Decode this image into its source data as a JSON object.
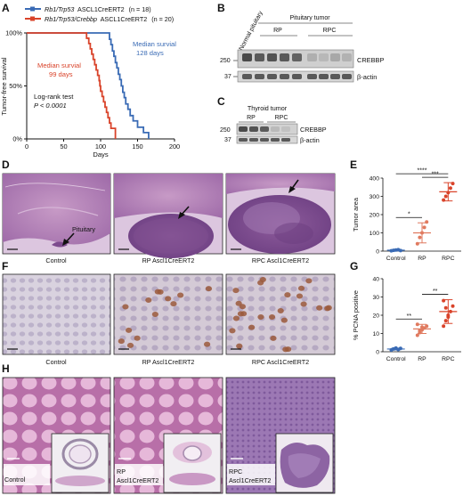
{
  "panels": {
    "A": "A",
    "B": "B",
    "C": "C",
    "D": "D",
    "E": "E",
    "F": "F",
    "G": "G",
    "H": "H"
  },
  "panel_a": {
    "legend": [
      {
        "genotype": "Rb1/Trp53",
        "driver": "ASCL1CreERT2",
        "n_label": "(n = 18)",
        "color": "#3a6bb5"
      },
      {
        "genotype": "Rb1/Trp53/Crebbp",
        "driver": "ASCL1CreERT2",
        "n_label": "(n = 20)",
        "color": "#d9432a"
      }
    ],
    "annot_blue_1": "Median survial",
    "annot_blue_2": "128 days",
    "annot_red_1": "Median survial",
    "annot_red_2": "99 days",
    "logrank_1": "Log-rank test",
    "logrank_2": "P < 0.0001"
  },
  "chart_data": [
    {
      "type": "line",
      "panel": "A",
      "xlabel": "Days",
      "ylabel": "Tumor-free survival",
      "xlim": [
        0,
        200
      ],
      "ylim": [
        0,
        100
      ],
      "xticks": [
        0,
        50,
        100,
        150,
        200
      ],
      "yticks": [
        0,
        50,
        100
      ],
      "yticklabels": [
        "0%",
        "50%",
        "100%"
      ],
      "series": [
        {
          "name": "Rb1/Trp53 ASCL1CreERT2 (n = 18)",
          "color": "#3a6bb5",
          "x": [
            0,
            110,
            112,
            114,
            116,
            118,
            120,
            122,
            124,
            126,
            128,
            130,
            132,
            134,
            137,
            140,
            144,
            150,
            158,
            165
          ],
          "y": [
            100,
            100,
            94,
            89,
            83,
            78,
            72,
            67,
            61,
            56,
            50,
            44,
            39,
            33,
            28,
            22,
            17,
            11,
            6,
            0
          ]
        },
        {
          "name": "Rb1/Trp53/Crebbp ASCL1CreERT2 (n = 20)",
          "color": "#d9432a",
          "x": [
            0,
            78,
            81,
            84,
            86,
            88,
            90,
            92,
            94,
            96,
            98,
            99,
            100,
            102,
            104,
            106,
            108,
            110,
            112,
            114,
            120
          ],
          "y": [
            100,
            100,
            95,
            90,
            85,
            80,
            75,
            70,
            65,
            60,
            55,
            50,
            45,
            40,
            35,
            30,
            25,
            20,
            15,
            10,
            0
          ]
        }
      ]
    },
    {
      "type": "scatter",
      "panel": "E",
      "ylabel": "Tumor area",
      "categories": [
        "Control",
        "RP",
        "RPC"
      ],
      "yticks": [
        0,
        100,
        200,
        300,
        400
      ],
      "ylim": [
        0,
        400
      ],
      "colors": [
        "#3a6bb5",
        "#e07a5f",
        "#d9432a"
      ],
      "means": [
        5,
        100,
        325
      ],
      "sd": [
        3,
        55,
        50
      ],
      "points": [
        [
          2,
          4,
          6,
          8,
          3
        ],
        [
          40,
          75,
          100,
          130,
          160
        ],
        [
          280,
          300,
          320,
          345,
          370
        ]
      ],
      "significance": [
        {
          "from": 0,
          "to": 1,
          "label": "*"
        },
        {
          "from": 1,
          "to": 2,
          "label": "***"
        },
        {
          "from": 0,
          "to": 2,
          "label": "****"
        }
      ]
    },
    {
      "type": "scatter",
      "panel": "G",
      "ylabel": "% PCNA positive",
      "categories": [
        "Control",
        "RP",
        "RPC"
      ],
      "yticks": [
        0,
        10,
        20,
        30,
        40
      ],
      "ylim": [
        0,
        40
      ],
      "colors": [
        "#3a6bb5",
        "#e07a5f",
        "#d9432a"
      ],
      "means": [
        1.5,
        12.5,
        22
      ],
      "sd": [
        0.5,
        2.5,
        6.5
      ],
      "points": [
        [
          1,
          1.5,
          2,
          1.2,
          1.8
        ],
        [
          9,
          10.5,
          12,
          13,
          14,
          15,
          11.5,
          13.5
        ],
        [
          14,
          17,
          20,
          22,
          25,
          28,
          24,
          19
        ]
      ],
      "significance": [
        {
          "from": 0,
          "to": 1,
          "label": "**"
        },
        {
          "from": 1,
          "to": 2,
          "label": "**"
        }
      ]
    }
  ],
  "panel_b": {
    "lanes": [
      "Normal pituitary",
      "Pituitary tumor",
      "RP",
      "RPC"
    ],
    "markers": [
      "250",
      "37"
    ],
    "labels": [
      "CREBBP",
      "β-actin"
    ]
  },
  "panel_c": {
    "title": "Thyroid tumor",
    "groups": [
      "RP",
      "RPC"
    ],
    "markers": [
      "250",
      "37"
    ],
    "labels": [
      "CREBBP",
      "β-actin"
    ]
  },
  "panel_d": {
    "captions": [
      "Control",
      "RP Ascl1CreERT2",
      "RPC Ascl1CreERT2"
    ],
    "pituitary_label": "Pituitary"
  },
  "panel_f": {
    "captions": [
      "Control",
      "RP Ascl1CreERT2",
      "RPC Ascl1CreERT2"
    ]
  },
  "panel_h": {
    "captions": [
      {
        "line1": "Control",
        "line2": ""
      },
      {
        "line1": "RP",
        "line2": "Ascl1CreERT2"
      },
      {
        "line1": "RPC",
        "line2": "Ascl1CreERT2"
      }
    ]
  }
}
